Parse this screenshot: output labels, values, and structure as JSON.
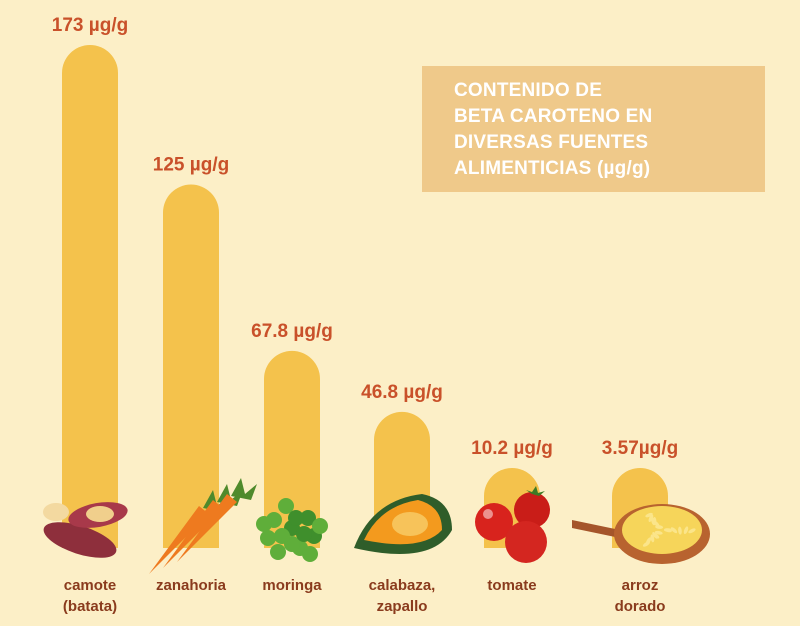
{
  "colors": {
    "background": "#fcefc7",
    "bar": "#f4c24c",
    "value_label": "#c9512a",
    "category_label": "#8a3b1d",
    "title_box": "#efc98a",
    "title_text": "#ffffff"
  },
  "chart_data": {
    "type": "bar",
    "title_lines": [
      "CONTENIDO DE",
      "BETA CAROTENO EN",
      "DIVERSAS FUENTES",
      "ALIMENTICIAS (µg/g)"
    ],
    "categories": [
      [
        "camote",
        "(batata)"
      ],
      [
        "zanahoria"
      ],
      [
        "moringa"
      ],
      [
        "calabaza,",
        "zapallo"
      ],
      [
        "tomate"
      ],
      [
        "arroz",
        "dorado"
      ]
    ],
    "values": [
      173,
      125,
      67.8,
      46.8,
      10.2,
      3.57
    ],
    "value_labels": [
      "173 µg/g",
      "125 µg/g",
      "67.8 µg/g",
      "46.8 µg/g",
      "10.2 µg/g",
      "3.57µg/g"
    ],
    "icons": [
      "sweet-potato-icon",
      "carrot-icon",
      "moringa-leaves-icon",
      "pumpkin-icon",
      "tomato-icon",
      "golden-rice-icon"
    ],
    "ylim": [
      0,
      173
    ],
    "grid": false,
    "legend": "none"
  }
}
